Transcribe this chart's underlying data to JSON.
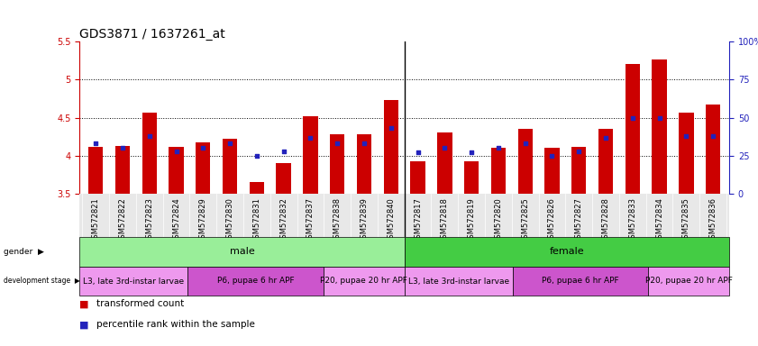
{
  "title": "GDS3871 / 1637261_at",
  "samples": [
    "GSM572821",
    "GSM572822",
    "GSM572823",
    "GSM572824",
    "GSM572829",
    "GSM572830",
    "GSM572831",
    "GSM572832",
    "GSM572837",
    "GSM572838",
    "GSM572839",
    "GSM572840",
    "GSM572817",
    "GSM572818",
    "GSM572819",
    "GSM572820",
    "GSM572825",
    "GSM572826",
    "GSM572827",
    "GSM572828",
    "GSM572833",
    "GSM572834",
    "GSM572835",
    "GSM572836"
  ],
  "transformed_count": [
    4.12,
    4.13,
    4.57,
    4.12,
    4.17,
    4.22,
    3.65,
    3.9,
    4.52,
    4.28,
    4.28,
    4.73,
    3.93,
    4.3,
    3.93,
    4.1,
    4.35,
    4.1,
    4.12,
    4.35,
    5.2,
    5.27,
    4.57,
    4.67
  ],
  "percentile_rank": [
    33,
    30,
    38,
    28,
    30,
    33,
    25,
    28,
    37,
    33,
    33,
    43,
    27,
    30,
    27,
    30,
    33,
    25,
    28,
    37,
    50,
    50,
    38,
    38
  ],
  "ylim_left": [
    3.5,
    5.5
  ],
  "ylim_right": [
    0,
    100
  ],
  "yticks_left": [
    3.5,
    4.0,
    4.5,
    5.0,
    5.5
  ],
  "ytick_labels_left": [
    "3.5",
    "4",
    "4.5",
    "5",
    "5.5"
  ],
  "yticks_right": [
    0,
    25,
    50,
    75,
    100
  ],
  "ytick_labels_right": [
    "0",
    "25",
    "50",
    "75",
    "100%"
  ],
  "bar_color": "#cc0000",
  "dot_color": "#2222bb",
  "bar_bottom": 3.5,
  "gender_groups": [
    {
      "label": "male",
      "start": 0,
      "end": 11,
      "color": "#99ee99"
    },
    {
      "label": "female",
      "start": 12,
      "end": 23,
      "color": "#44cc44"
    }
  ],
  "dev_stage_groups": [
    {
      "label": "L3, late 3rd-instar larvae",
      "start": 0,
      "end": 3,
      "color": "#ee99ee"
    },
    {
      "label": "P6, pupae 6 hr APF",
      "start": 4,
      "end": 8,
      "color": "#cc55cc"
    },
    {
      "label": "P20, pupae 20 hr APF",
      "start": 9,
      "end": 11,
      "color": "#ee99ee"
    },
    {
      "label": "L3, late 3rd-instar larvae",
      "start": 12,
      "end": 15,
      "color": "#ee99ee"
    },
    {
      "label": "P6, pupae 6 hr APF",
      "start": 16,
      "end": 20,
      "color": "#cc55cc"
    },
    {
      "label": "P20, pupae 20 hr APF",
      "start": 21,
      "end": 23,
      "color": "#ee99ee"
    }
  ],
  "axis_color_left": "#cc0000",
  "axis_color_right": "#2222bb",
  "tick_fontsize": 7,
  "title_fontsize": 10,
  "sample_fontsize": 6,
  "gender_fontsize": 8,
  "dev_fontsize": 6.5,
  "legend_fontsize": 7.5,
  "grid_yticks": [
    4.0,
    4.5,
    5.0
  ]
}
